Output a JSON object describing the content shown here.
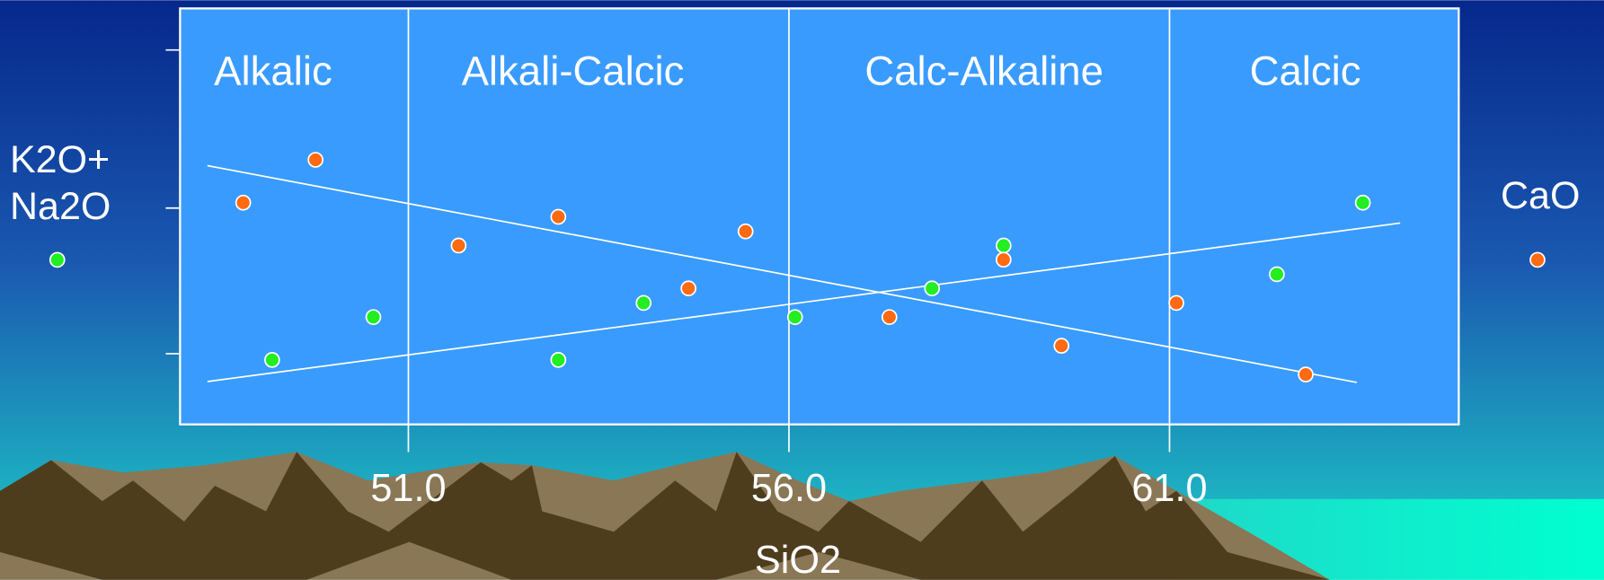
{
  "chart_data": {
    "type": "scatter",
    "x_label": "SiO2",
    "regions": [
      "Alkalic",
      "Alkali-Calcic",
      "Calc-Alkaline",
      "Calcic"
    ],
    "xlim": [
      48.0,
      64.8
    ],
    "ylim": [
      0,
      100
    ],
    "xticks": [
      {
        "value": 51,
        "label": "51.0"
      },
      {
        "value": 56,
        "label": "56.0"
      },
      {
        "value": 61,
        "label": "61.0"
      }
    ],
    "yticks": [
      17,
      52,
      90
    ],
    "series": [
      {
        "name": "K2O+ Na2O",
        "color": "#22ee22",
        "x": [
          49.21,
          50.54,
          52.97,
          54.09,
          56.08,
          57.88,
          58.82,
          62.41,
          63.54
        ],
        "values": [
          15.5,
          25.8,
          15.5,
          29.2,
          25.8,
          32.7,
          43.0,
          36.1,
          53.3
        ],
        "trend_x": [
          48.36,
          64.03
        ],
        "trend_y": [
          10.3,
          48.4
        ]
      },
      {
        "name": "CaO",
        "color": "#ff6a13",
        "x": [
          48.83,
          49.78,
          51.66,
          52.97,
          54.68,
          55.43,
          57.32,
          58.82,
          59.58,
          61.09,
          62.79
        ],
        "values": [
          53.3,
          63.6,
          43.0,
          49.9,
          32.7,
          46.4,
          25.8,
          39.6,
          18.9,
          29.2,
          12.0
        ],
        "trend_x": [
          48.36,
          63.46
        ],
        "trend_y": [
          62.2,
          10.1
        ]
      }
    ]
  }
}
